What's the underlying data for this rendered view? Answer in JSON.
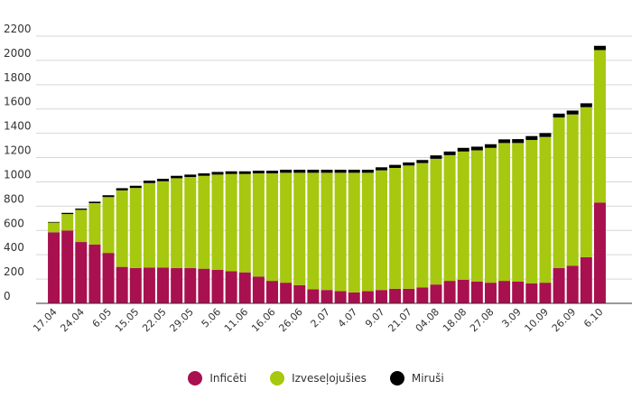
{
  "chart_data": {
    "type": "bar",
    "stacked": true,
    "title": "",
    "xlabel": "",
    "ylabel": "",
    "ylim": [
      0,
      2200
    ],
    "yticks": [
      0,
      200,
      400,
      600,
      800,
      1000,
      1200,
      1400,
      1600,
      1800,
      2000,
      2200
    ],
    "ytick_labels": [
      "0",
      "200",
      "400",
      "600",
      "800",
      "1000",
      "1200",
      "1400",
      "1600",
      "1800",
      "2000",
      "2200"
    ],
    "grid": true,
    "legend_position": "bottom",
    "categories": [
      "17.04",
      "",
      "24.04",
      "",
      "6.05",
      "",
      "15.05",
      "",
      "22.05",
      "",
      "29.05",
      "",
      "5.06",
      "",
      "11.06",
      "",
      "16.06",
      "",
      "26.06",
      "",
      "2.07",
      "",
      "4.07",
      "",
      "9.07",
      "",
      "21.07",
      "",
      "04.08",
      "",
      "18.08",
      "",
      "27.08",
      "",
      "3.09",
      "",
      "10.09",
      "",
      "26.09",
      "",
      "6.10"
    ],
    "series": [
      {
        "name": "Inficēti",
        "color": "#a8104f",
        "values": [
          585,
          600,
          505,
          485,
          415,
          300,
          290,
          295,
          295,
          290,
          290,
          285,
          275,
          265,
          255,
          220,
          185,
          170,
          150,
          115,
          110,
          100,
          90,
          100,
          110,
          120,
          120,
          130,
          155,
          185,
          195,
          180,
          170,
          185,
          180,
          165,
          170,
          290,
          310,
          380,
          830
        ]
      },
      {
        "name": "Izveseļojušies",
        "color": "#a6c80f",
        "values": [
          80,
          135,
          265,
          340,
          460,
          630,
          660,
          695,
          710,
          740,
          750,
          765,
          785,
          800,
          810,
          850,
          885,
          905,
          925,
          960,
          965,
          975,
          985,
          975,
          985,
          995,
          1015,
          1025,
          1035,
          1035,
          1055,
          1080,
          1110,
          1135,
          1140,
          1180,
          1200,
          1240,
          1245,
          1235,
          1255
        ]
      },
      {
        "name": "Miruši",
        "color": "#000000",
        "values": [
          5,
          10,
          10,
          12,
          15,
          18,
          18,
          20,
          20,
          20,
          20,
          20,
          22,
          22,
          22,
          22,
          22,
          25,
          25,
          25,
          25,
          25,
          25,
          25,
          25,
          25,
          25,
          25,
          28,
          30,
          30,
          30,
          30,
          30,
          32,
          32,
          32,
          32,
          32,
          32,
          35
        ]
      }
    ]
  },
  "colors": {
    "grid": "#d6d6d6",
    "axis": "#333333",
    "background": "#ffffff"
  },
  "legend": {
    "items": [
      {
        "label": "Inficēti",
        "color": "#a8104f"
      },
      {
        "label": "Izveseļojušies",
        "color": "#a6c80f"
      },
      {
        "label": "Miruši",
        "color": "#000000"
      }
    ]
  }
}
